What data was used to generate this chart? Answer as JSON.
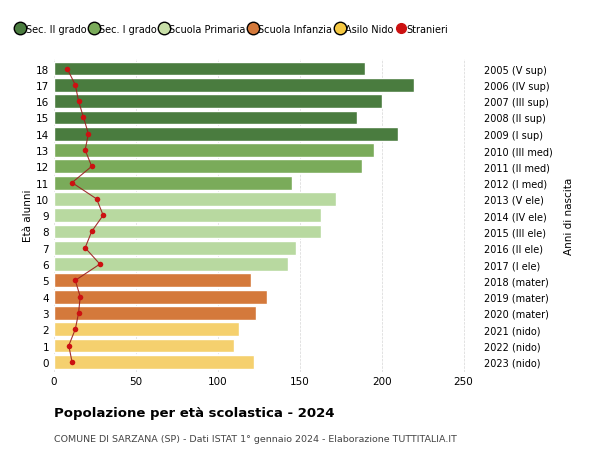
{
  "ages": [
    18,
    17,
    16,
    15,
    14,
    13,
    12,
    11,
    10,
    9,
    8,
    7,
    6,
    5,
    4,
    3,
    2,
    1,
    0
  ],
  "bar_values": [
    190,
    220,
    200,
    185,
    210,
    195,
    188,
    145,
    172,
    163,
    163,
    148,
    143,
    120,
    130,
    123,
    113,
    110,
    122
  ],
  "bar_colors": [
    "#4a7c3f",
    "#4a7c3f",
    "#4a7c3f",
    "#4a7c3f",
    "#4a7c3f",
    "#7aab5a",
    "#7aab5a",
    "#7aab5a",
    "#b8d9a0",
    "#b8d9a0",
    "#b8d9a0",
    "#b8d9a0",
    "#b8d9a0",
    "#d4793b",
    "#d4793b",
    "#d4793b",
    "#f5d06e",
    "#f5d06e",
    "#f5d06e"
  ],
  "stranieri_values": [
    8,
    13,
    15,
    18,
    21,
    19,
    23,
    11,
    26,
    30,
    23,
    19,
    28,
    13,
    16,
    15,
    13,
    9,
    11
  ],
  "right_labels": [
    "2005 (V sup)",
    "2006 (IV sup)",
    "2007 (III sup)",
    "2008 (II sup)",
    "2009 (I sup)",
    "2010 (III med)",
    "2011 (II med)",
    "2012 (I med)",
    "2013 (V ele)",
    "2014 (IV ele)",
    "2015 (III ele)",
    "2016 (II ele)",
    "2017 (I ele)",
    "2018 (mater)",
    "2019 (mater)",
    "2020 (mater)",
    "2021 (nido)",
    "2022 (nido)",
    "2023 (nido)"
  ],
  "legend_labels": [
    "Sec. II grado",
    "Sec. I grado",
    "Scuola Primaria",
    "Scuola Infanzia",
    "Asilo Nido",
    "Stranieri"
  ],
  "legend_colors": [
    "#4a7c3f",
    "#7aab5a",
    "#c8dfa8",
    "#d4793b",
    "#f5c842",
    "#cc1111"
  ],
  "title": "Popolazione per età scolastica - 2024",
  "subtitle": "COMUNE DI SARZANA (SP) - Dati ISTAT 1° gennaio 2024 - Elaborazione TUTTITALIA.IT",
  "ylabel": "Età alunni",
  "right_ylabel": "Anni di nascita",
  "xlim": [
    0,
    260
  ],
  "xticks": [
    0,
    50,
    100,
    150,
    200,
    250
  ],
  "background_color": "#ffffff",
  "grid_color": "#cccccc",
  "bar_edge_color": "#ffffff",
  "stranieri_line_color": "#9b1c1c",
  "stranieri_dot_color": "#cc1111"
}
